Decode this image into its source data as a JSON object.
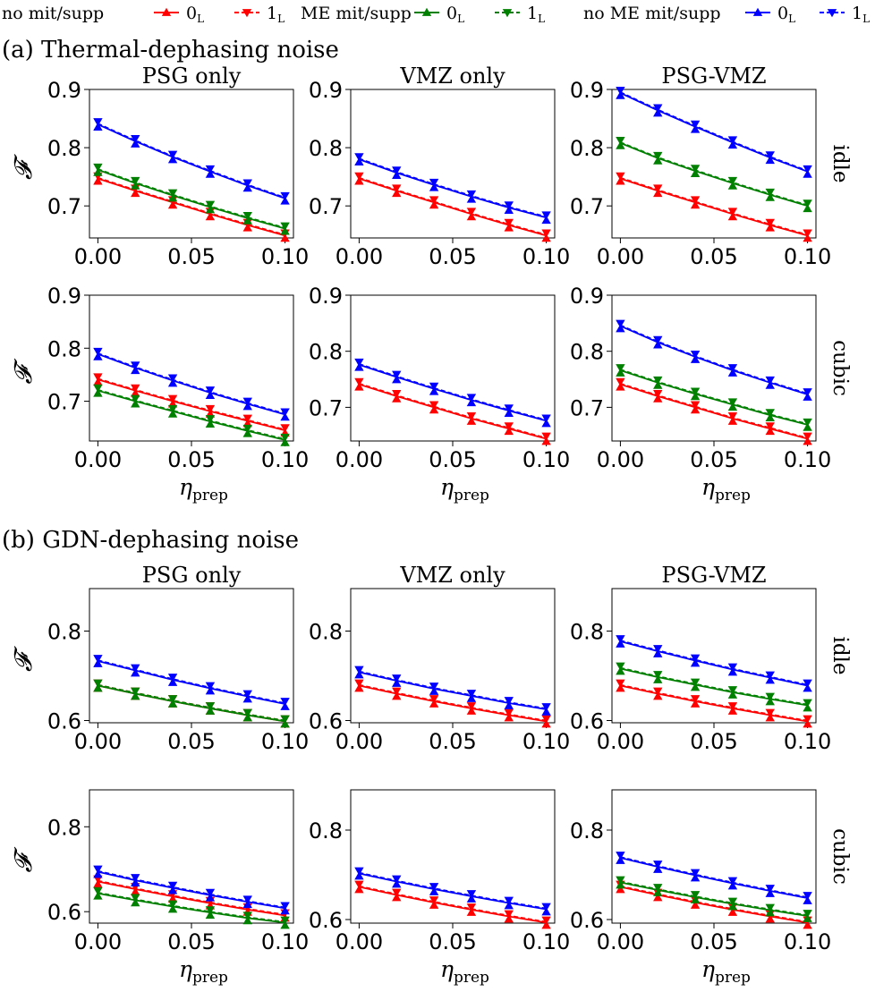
{
  "legend": {
    "groups": [
      {
        "label": "no mit/supp",
        "color": "#ff0000",
        "entries": [
          {
            "label": "0",
            "sub": "L",
            "marker": "up",
            "dash": false
          },
          {
            "label": "1",
            "sub": "L",
            "marker": "down",
            "dash": true
          }
        ]
      },
      {
        "label": "ME mit/supp",
        "color": "#008000",
        "entries": [
          {
            "label": "0",
            "sub": "L",
            "marker": "up",
            "dash": false
          },
          {
            "label": "1",
            "sub": "L",
            "marker": "down",
            "dash": true
          }
        ]
      },
      {
        "label": "no ME mit/supp",
        "color": "#0000ff",
        "entries": [
          {
            "label": "0",
            "sub": "L",
            "marker": "up",
            "dash": false
          },
          {
            "label": "1",
            "sub": "L",
            "marker": "down",
            "dash": true
          }
        ]
      }
    ]
  },
  "sections": [
    {
      "title": "(a) Thermal-dephasing noise"
    },
    {
      "title": "(b) GDN-dephasing noise"
    }
  ],
  "columns": [
    "PSG only",
    "VMZ only",
    "PSG-VMZ"
  ],
  "rows": [
    "idle",
    "cubic"
  ],
  "y_axis_label": "𝓕",
  "x_axis_label": {
    "main": "η",
    "sub": "prep"
  },
  "x_ticks": [
    "0.00",
    "0.05",
    "0.10"
  ],
  "chart_data": [
    {
      "type": "line",
      "section": "(a) Thermal-dephasing noise",
      "row": "idle",
      "column": "PSG only",
      "x": [
        0,
        0.02,
        0.04,
        0.06,
        0.08,
        0.1
      ],
      "ylim": [
        0.645,
        0.9
      ],
      "yticks": [
        "0.7",
        "0.8",
        "0.9"
      ],
      "ytick_values": [
        0.7,
        0.8,
        0.9
      ],
      "series": [
        {
          "name": "no mit/supp",
          "color": "#ff0000",
          "values": [
            0.747,
            0.726,
            0.706,
            0.686,
            0.667,
            0.649
          ]
        },
        {
          "name": "ME mit/supp",
          "color": "#008000",
          "values": [
            0.762,
            0.739,
            0.718,
            0.698,
            0.679,
            0.661
          ]
        },
        {
          "name": "no ME mit/supp",
          "color": "#0000ff",
          "values": [
            0.84,
            0.811,
            0.784,
            0.759,
            0.735,
            0.713
          ]
        }
      ]
    },
    {
      "type": "line",
      "section": "(a) Thermal-dephasing noise",
      "row": "idle",
      "column": "VMZ only",
      "x": [
        0,
        0.02,
        0.04,
        0.06,
        0.08,
        0.1
      ],
      "ylim": [
        0.645,
        0.9
      ],
      "yticks": [
        "0.7",
        "0.8",
        "0.9"
      ],
      "ytick_values": [
        0.7,
        0.8,
        0.9
      ],
      "series": [
        {
          "name": "no mit/supp",
          "color": "#ff0000",
          "values": [
            0.747,
            0.726,
            0.706,
            0.686,
            0.667,
            0.649
          ]
        },
        {
          "name": "no ME mit/supp",
          "color": "#0000ff",
          "values": [
            0.78,
            0.757,
            0.736,
            0.716,
            0.697,
            0.68
          ]
        }
      ]
    },
    {
      "type": "line",
      "section": "(a) Thermal-dephasing noise",
      "row": "idle",
      "column": "PSG-VMZ",
      "x": [
        0,
        0.02,
        0.04,
        0.06,
        0.08,
        0.1
      ],
      "ylim": [
        0.645,
        0.9
      ],
      "yticks": [
        "0.7",
        "0.8",
        "0.9"
      ],
      "ytick_values": [
        0.7,
        0.8,
        0.9
      ],
      "series": [
        {
          "name": "no mit/supp",
          "color": "#ff0000",
          "values": [
            0.747,
            0.726,
            0.706,
            0.686,
            0.667,
            0.649
          ]
        },
        {
          "name": "ME mit/supp",
          "color": "#008000",
          "values": [
            0.808,
            0.782,
            0.76,
            0.739,
            0.719,
            0.7
          ]
        },
        {
          "name": "no ME mit/supp",
          "color": "#0000ff",
          "values": [
            0.894,
            0.864,
            0.836,
            0.809,
            0.783,
            0.759
          ]
        }
      ]
    },
    {
      "type": "line",
      "section": "(a) Thermal-dephasing noise",
      "row": "cubic",
      "column": "PSG only",
      "x": [
        0,
        0.02,
        0.04,
        0.06,
        0.08,
        0.1
      ],
      "ylim": [
        0.625,
        0.9
      ],
      "yticks": [
        "0.7",
        "0.8",
        "0.9"
      ],
      "ytick_values": [
        0.7,
        0.8,
        0.9
      ],
      "series": [
        {
          "name": "no mit/supp",
          "color": "#ff0000",
          "values": [
            0.741,
            0.72,
            0.7,
            0.681,
            0.663,
            0.645
          ]
        },
        {
          "name": "ME mit/supp",
          "color": "#008000",
          "values": [
            0.72,
            0.7,
            0.681,
            0.662,
            0.644,
            0.627
          ]
        },
        {
          "name": "no ME mit/supp",
          "color": "#0000ff",
          "values": [
            0.789,
            0.763,
            0.739,
            0.716,
            0.695,
            0.675
          ]
        }
      ]
    },
    {
      "type": "line",
      "section": "(a) Thermal-dephasing noise",
      "row": "cubic",
      "column": "VMZ only",
      "x": [
        0,
        0.02,
        0.04,
        0.06,
        0.08,
        0.1
      ],
      "ylim": [
        0.64,
        0.9
      ],
      "yticks": [
        "0.7",
        "0.8",
        "0.9"
      ],
      "ytick_values": [
        0.7,
        0.8,
        0.9
      ],
      "series": [
        {
          "name": "no mit/supp",
          "color": "#ff0000",
          "values": [
            0.741,
            0.72,
            0.7,
            0.68,
            0.662,
            0.644
          ]
        },
        {
          "name": "no ME mit/supp",
          "color": "#0000ff",
          "values": [
            0.776,
            0.754,
            0.733,
            0.713,
            0.694,
            0.676
          ]
        }
      ]
    },
    {
      "type": "line",
      "section": "(a) Thermal-dephasing noise",
      "row": "cubic",
      "column": "PSG-VMZ",
      "x": [
        0,
        0.02,
        0.04,
        0.06,
        0.08,
        0.1
      ],
      "ylim": [
        0.64,
        0.9
      ],
      "yticks": [
        "0.7",
        "0.8",
        "0.9"
      ],
      "ytick_values": [
        0.7,
        0.8,
        0.9
      ],
      "series": [
        {
          "name": "no mit/supp",
          "color": "#ff0000",
          "values": [
            0.741,
            0.72,
            0.7,
            0.68,
            0.662,
            0.644
          ]
        },
        {
          "name": "ME mit/supp",
          "color": "#008000",
          "values": [
            0.766,
            0.744,
            0.724,
            0.705,
            0.686,
            0.669
          ]
        },
        {
          "name": "no ME mit/supp",
          "color": "#0000ff",
          "values": [
            0.845,
            0.816,
            0.79,
            0.766,
            0.744,
            0.723
          ]
        }
      ]
    },
    {
      "type": "line",
      "section": "(b) GDN-dephasing noise",
      "row": "idle",
      "column": "PSG only",
      "x": [
        0,
        0.02,
        0.04,
        0.06,
        0.08,
        0.1
      ],
      "ylim": [
        0.595,
        0.895
      ],
      "yticks": [
        "0.6",
        "0.8"
      ],
      "ytick_values": [
        0.6,
        0.8
      ],
      "series": [
        {
          "name": "no mit/supp",
          "color": "#ff0000",
          "values": [
            0.678,
            0.66,
            0.643,
            0.627,
            0.612,
            0.598
          ]
        },
        {
          "name": "ME mit/supp",
          "color": "#008000",
          "values": [
            0.678,
            0.66,
            0.643,
            0.627,
            0.612,
            0.598
          ]
        },
        {
          "name": "no ME mit/supp",
          "color": "#0000ff",
          "values": [
            0.733,
            0.712,
            0.691,
            0.672,
            0.654,
            0.637
          ]
        }
      ]
    },
    {
      "type": "line",
      "section": "(b) GDN-dephasing noise",
      "row": "idle",
      "column": "VMZ only",
      "x": [
        0,
        0.02,
        0.04,
        0.06,
        0.08,
        0.1
      ],
      "ylim": [
        0.595,
        0.895
      ],
      "yticks": [
        "0.6",
        "0.8"
      ],
      "ytick_values": [
        0.6,
        0.8
      ],
      "series": [
        {
          "name": "no mit/supp",
          "color": "#ff0000",
          "values": [
            0.678,
            0.66,
            0.643,
            0.627,
            0.612,
            0.598
          ]
        },
        {
          "name": "no ME mit/supp",
          "color": "#0000ff",
          "values": [
            0.708,
            0.689,
            0.671,
            0.655,
            0.639,
            0.625
          ]
        }
      ]
    },
    {
      "type": "line",
      "section": "(b) GDN-dephasing noise",
      "row": "idle",
      "column": "PSG-VMZ",
      "x": [
        0,
        0.02,
        0.04,
        0.06,
        0.08,
        0.1
      ],
      "ylim": [
        0.595,
        0.895
      ],
      "yticks": [
        "0.6",
        "0.8"
      ],
      "ytick_values": [
        0.6,
        0.8
      ],
      "series": [
        {
          "name": "no mit/supp",
          "color": "#ff0000",
          "values": [
            0.678,
            0.66,
            0.643,
            0.627,
            0.612,
            0.598
          ]
        },
        {
          "name": "ME mit/supp",
          "color": "#008000",
          "values": [
            0.716,
            0.697,
            0.68,
            0.663,
            0.648,
            0.634
          ]
        },
        {
          "name": "no ME mit/supp",
          "color": "#0000ff",
          "values": [
            0.777,
            0.755,
            0.734,
            0.714,
            0.696,
            0.678
          ]
        }
      ]
    },
    {
      "type": "line",
      "section": "(b) GDN-dephasing noise",
      "row": "cubic",
      "column": "PSG only",
      "x": [
        0,
        0.02,
        0.04,
        0.06,
        0.08,
        0.1
      ],
      "ylim": [
        0.573,
        0.887
      ],
      "yticks": [
        "0.6",
        "0.8"
      ],
      "ytick_values": [
        0.6,
        0.8
      ],
      "series": [
        {
          "name": "no mit/supp",
          "color": "#ff0000",
          "values": [
            0.671,
            0.653,
            0.636,
            0.62,
            0.605,
            0.591
          ]
        },
        {
          "name": "ME mit/supp",
          "color": "#008000",
          "values": [
            0.643,
            0.627,
            0.612,
            0.598,
            0.585,
            0.574
          ]
        },
        {
          "name": "no ME mit/supp",
          "color": "#0000ff",
          "values": [
            0.694,
            0.674,
            0.656,
            0.639,
            0.623,
            0.608
          ]
        }
      ]
    },
    {
      "type": "line",
      "section": "(b) GDN-dephasing noise",
      "row": "cubic",
      "column": "VMZ only",
      "x": [
        0,
        0.02,
        0.04,
        0.06,
        0.08,
        0.1
      ],
      "ylim": [
        0.592,
        0.89
      ],
      "yticks": [
        "0.6",
        "0.8"
      ],
      "ytick_values": [
        0.6,
        0.8
      ],
      "series": [
        {
          "name": "no mit/supp",
          "color": "#ff0000",
          "values": [
            0.673,
            0.655,
            0.638,
            0.622,
            0.607,
            0.593
          ]
        },
        {
          "name": "no ME mit/supp",
          "color": "#0000ff",
          "values": [
            0.703,
            0.685,
            0.668,
            0.652,
            0.637,
            0.623
          ]
        }
      ]
    },
    {
      "type": "line",
      "section": "(b) GDN-dephasing noise",
      "row": "cubic",
      "column": "PSG-VMZ",
      "x": [
        0,
        0.02,
        0.04,
        0.06,
        0.08,
        0.1
      ],
      "ylim": [
        0.592,
        0.89
      ],
      "yticks": [
        "0.6",
        "0.8"
      ],
      "ytick_values": [
        0.6,
        0.8
      ],
      "series": [
        {
          "name": "no mit/supp",
          "color": "#ff0000",
          "values": [
            0.673,
            0.655,
            0.638,
            0.622,
            0.607,
            0.593
          ]
        },
        {
          "name": "ME mit/supp",
          "color": "#008000",
          "values": [
            0.683,
            0.666,
            0.65,
            0.635,
            0.621,
            0.608
          ]
        },
        {
          "name": "no ME mit/supp",
          "color": "#0000ff",
          "values": [
            0.738,
            0.718,
            0.699,
            0.681,
            0.664,
            0.648
          ]
        }
      ]
    }
  ]
}
